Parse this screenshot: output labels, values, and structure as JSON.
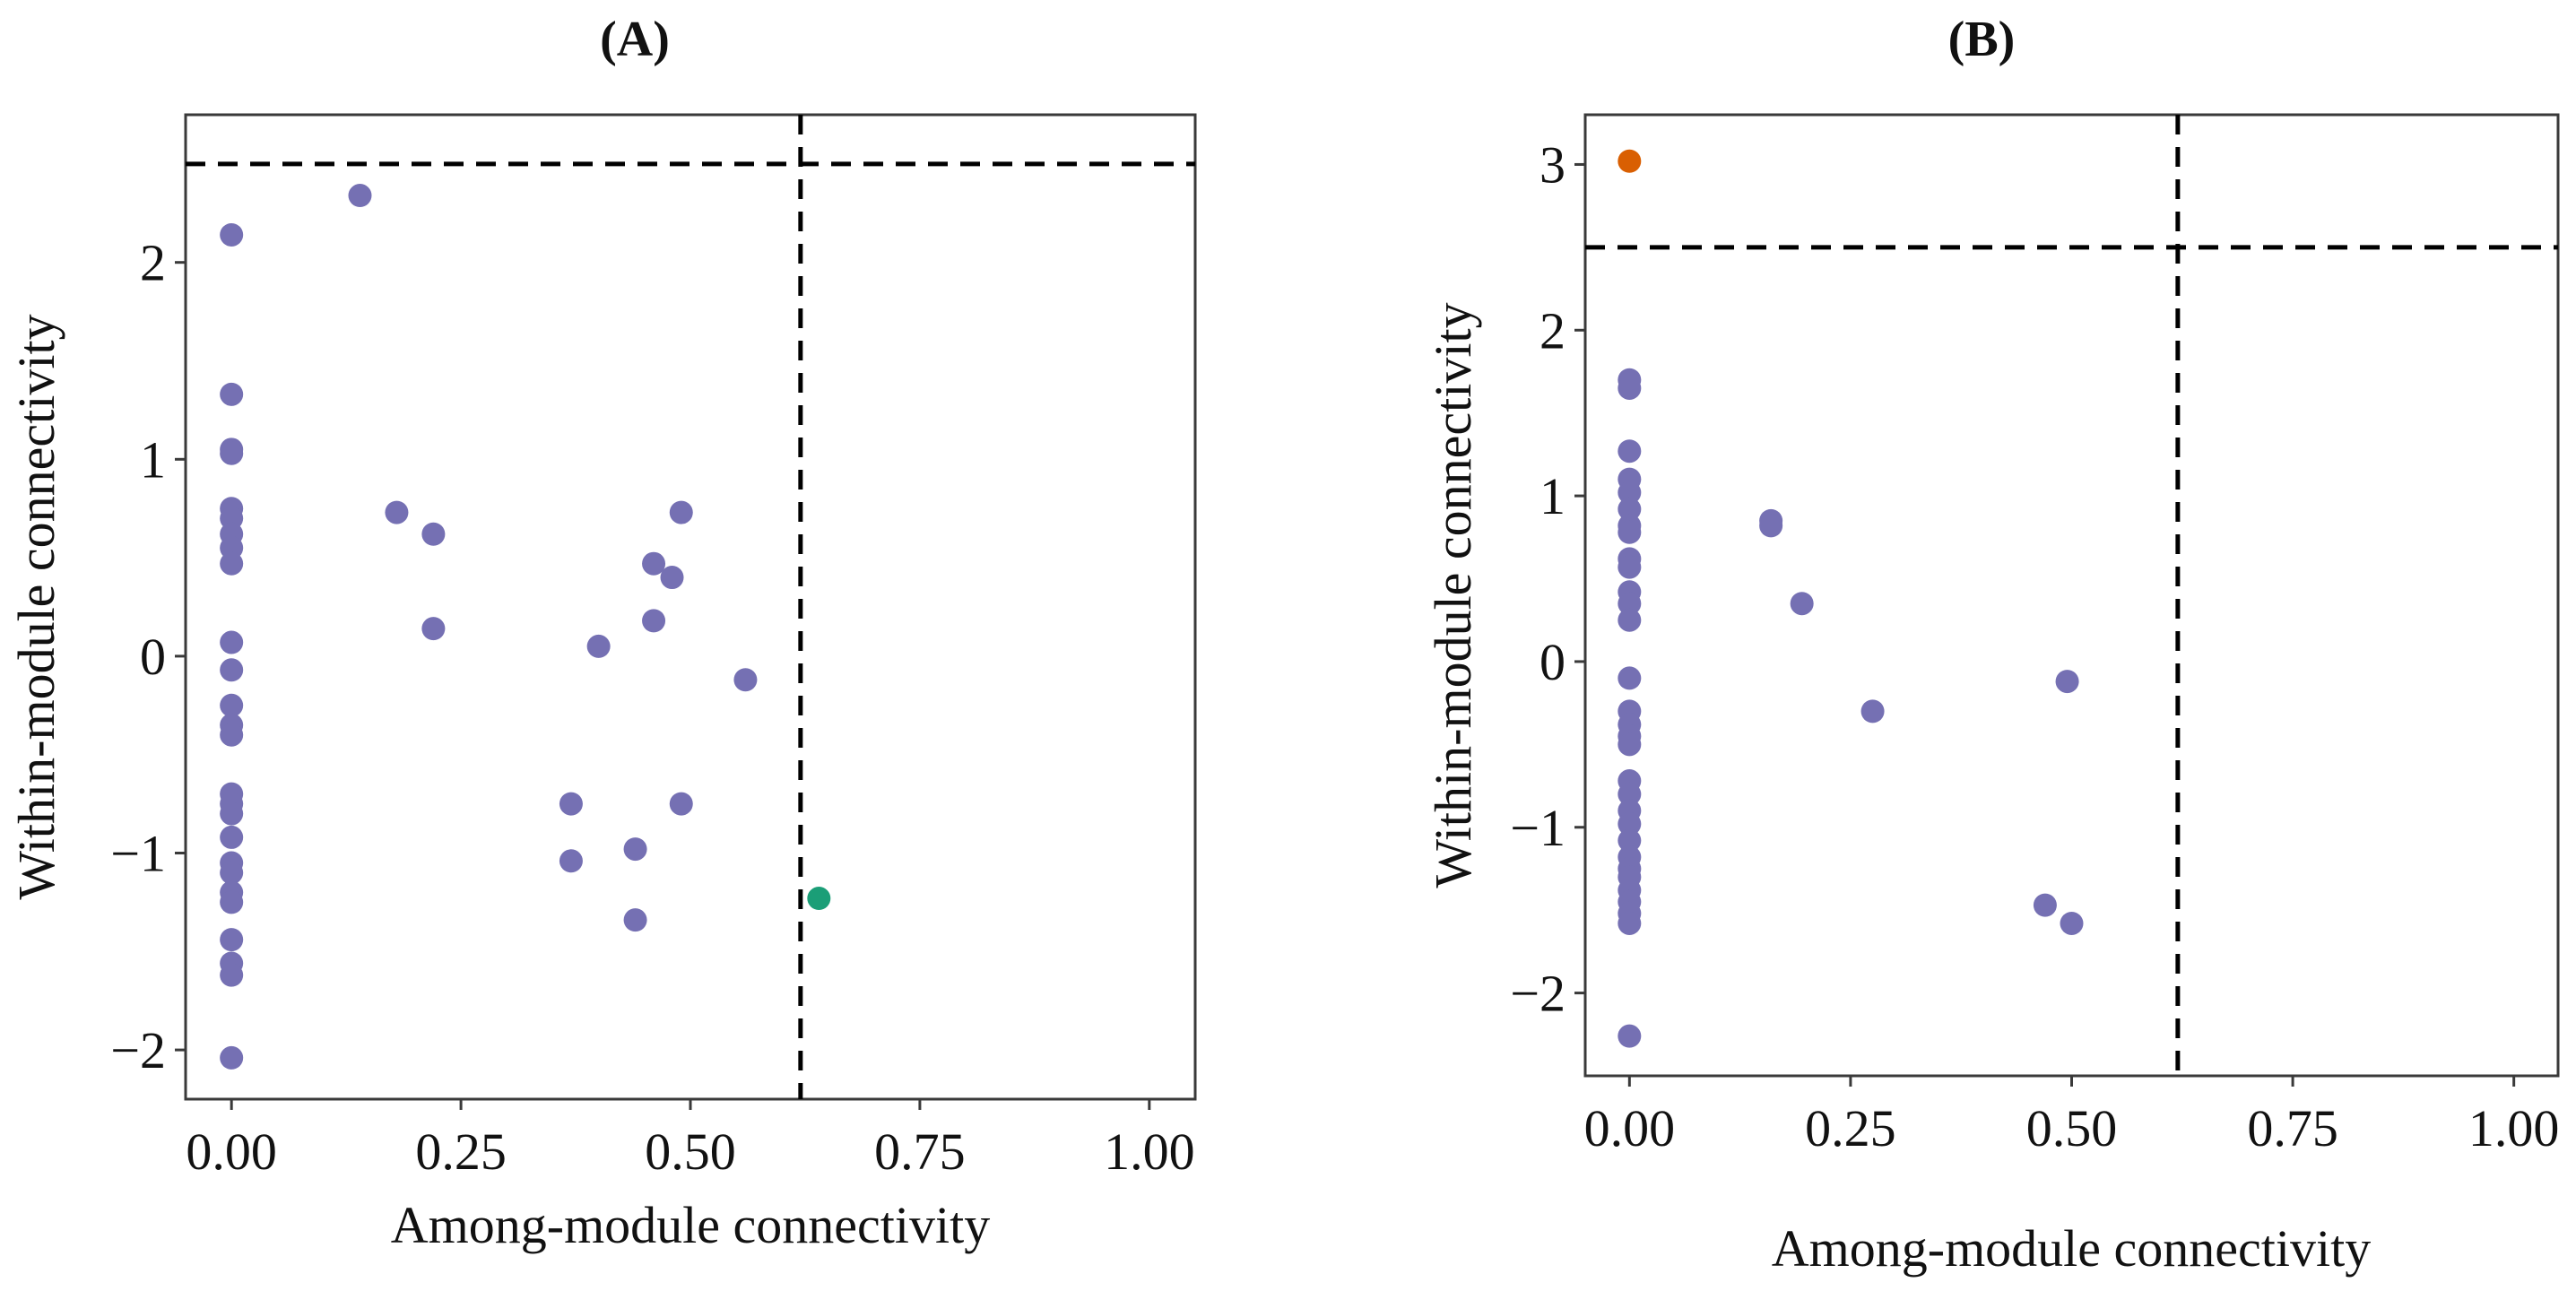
{
  "colors": {
    "default_point": "#7570b3",
    "connector_point": "#1b9e77",
    "hub_point": "#d95f02",
    "threshold_line": "#000000",
    "frame": "#3a3a3a"
  },
  "chart_data": [
    {
      "type": "scatter",
      "title": "(A)",
      "xlabel": "Among-module connectivity",
      "ylabel": "Within-module connectivity",
      "xlim": [
        -0.05,
        1.05
      ],
      "ylim": [
        -2.25,
        2.75
      ],
      "x_ticks": [
        0,
        0.25,
        0.5,
        0.75,
        1
      ],
      "x_tick_labels": [
        "0.00",
        "0.25",
        "0.50",
        "0.75",
        "1.00"
      ],
      "y_ticks": [
        -2,
        -1,
        0,
        1,
        2
      ],
      "y_tick_labels": [
        "−2",
        "−1",
        "0",
        "1",
        "2"
      ],
      "thresholds": {
        "x": 0.62,
        "y": 2.5
      },
      "grid": false,
      "series": [
        {
          "role": "default",
          "points": [
            [
              0,
              2.14
            ],
            [
              0,
              1.33
            ],
            [
              0,
              1.05
            ],
            [
              0,
              1.03
            ],
            [
              0,
              0.75
            ],
            [
              0,
              0.7
            ],
            [
              0,
              0.62
            ],
            [
              0,
              0.55
            ],
            [
              0,
              0.47
            ],
            [
              0,
              0.07
            ],
            [
              0,
              -0.07
            ],
            [
              0,
              -0.25
            ],
            [
              0,
              -0.35
            ],
            [
              0,
              -0.4
            ],
            [
              0,
              -0.7
            ],
            [
              0,
              -0.75
            ],
            [
              0,
              -0.8
            ],
            [
              0,
              -0.92
            ],
            [
              0,
              -1.05
            ],
            [
              0,
              -1.1
            ],
            [
              0,
              -1.2
            ],
            [
              0,
              -1.25
            ],
            [
              0,
              -1.44
            ],
            [
              0,
              -1.56
            ],
            [
              0,
              -1.62
            ],
            [
              0,
              -2.04
            ],
            [
              0.14,
              2.34
            ],
            [
              0.18,
              0.73
            ],
            [
              0.22,
              0.62
            ],
            [
              0.22,
              0.14
            ],
            [
              0.4,
              0.05
            ],
            [
              0.46,
              0.47
            ],
            [
              0.48,
              0.4
            ],
            [
              0.49,
              0.73
            ],
            [
              0.46,
              0.18
            ],
            [
              0.56,
              -0.12
            ],
            [
              0.37,
              -0.75
            ],
            [
              0.37,
              -1.04
            ],
            [
              0.44,
              -0.98
            ],
            [
              0.49,
              -0.75
            ],
            [
              0.44,
              -1.34
            ]
          ]
        },
        {
          "role": "connector",
          "points": [
            [
              0.64,
              -1.23
            ]
          ]
        }
      ]
    },
    {
      "type": "scatter",
      "title": "(B)",
      "xlabel": "Among-module connectivity",
      "ylabel": "Within-module connectivity",
      "xlim": [
        -0.05,
        1.05
      ],
      "ylim": [
        -2.5,
        3.3
      ],
      "x_ticks": [
        0,
        0.25,
        0.5,
        0.75,
        1
      ],
      "x_tick_labels": [
        "0.00",
        "0.25",
        "0.50",
        "0.75",
        "1.00"
      ],
      "y_ticks": [
        -2,
        -1,
        0,
        1,
        2,
        3
      ],
      "y_tick_labels": [
        "−2",
        "−1",
        "0",
        "1",
        "2",
        "3"
      ],
      "thresholds": {
        "x": 0.62,
        "y": 2.5
      },
      "grid": false,
      "series": [
        {
          "role": "hub",
          "points": [
            [
              0,
              3.02
            ]
          ]
        },
        {
          "role": "default",
          "points": [
            [
              0,
              1.7
            ],
            [
              0,
              1.65
            ],
            [
              0,
              1.27
            ],
            [
              0,
              1.1
            ],
            [
              0,
              1.02
            ],
            [
              0,
              0.92
            ],
            [
              0,
              0.82
            ],
            [
              0,
              0.78
            ],
            [
              0,
              0.62
            ],
            [
              0,
              0.57
            ],
            [
              0,
              0.42
            ],
            [
              0,
              0.35
            ],
            [
              0,
              0.25
            ],
            [
              0,
              -0.1
            ],
            [
              0,
              -0.3
            ],
            [
              0,
              -0.38
            ],
            [
              0,
              -0.45
            ],
            [
              0,
              -0.5
            ],
            [
              0,
              -0.72
            ],
            [
              0,
              -0.8
            ],
            [
              0,
              -0.9
            ],
            [
              0,
              -0.98
            ],
            [
              0,
              -1.08
            ],
            [
              0,
              -1.18
            ],
            [
              0,
              -1.25
            ],
            [
              0,
              -1.3
            ],
            [
              0,
              -1.38
            ],
            [
              0,
              -1.45
            ],
            [
              0,
              -1.52
            ],
            [
              0,
              -1.58
            ],
            [
              0,
              -2.26
            ],
            [
              0.16,
              0.85
            ],
            [
              0.16,
              0.82
            ],
            [
              0.195,
              0.35
            ],
            [
              0.275,
              -0.3
            ],
            [
              0.495,
              -0.12
            ],
            [
              0.47,
              -1.47
            ],
            [
              0.5,
              -1.58
            ]
          ]
        }
      ]
    }
  ]
}
